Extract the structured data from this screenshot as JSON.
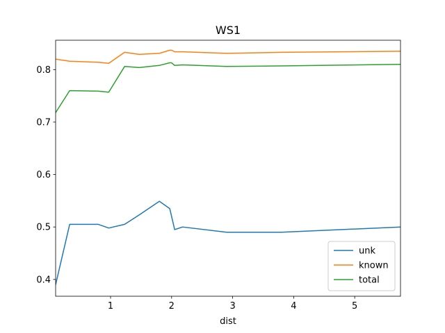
{
  "chart_data": {
    "type": "line",
    "title": "WS1",
    "xlabel": "dist",
    "ylabel": "",
    "xlim": [
      0.1,
      5.75
    ],
    "ylim": [
      0.368,
      0.856
    ],
    "xticks": [
      1,
      2,
      3,
      4,
      5
    ],
    "yticks": [
      0.4,
      0.5,
      0.6,
      0.7,
      0.8
    ],
    "grid": false,
    "legend_position": "lower-right",
    "series": [
      {
        "name": "unk",
        "color": "#1f77b4",
        "x": [
          0.1,
          0.33,
          0.8,
          0.97,
          1.23,
          1.47,
          1.8,
          1.97,
          2.05,
          2.18,
          2.9,
          3.8,
          5.75
        ],
        "y": [
          0.39,
          0.505,
          0.505,
          0.498,
          0.505,
          0.523,
          0.549,
          0.535,
          0.495,
          0.5,
          0.49,
          0.49,
          0.5
        ]
      },
      {
        "name": "known",
        "color": "#ff7f0e",
        "x": [
          0.1,
          0.33,
          0.8,
          0.97,
          1.23,
          1.47,
          1.8,
          1.97,
          2.0,
          2.05,
          2.18,
          2.9,
          3.8,
          5.75
        ],
        "y": [
          0.82,
          0.816,
          0.814,
          0.812,
          0.833,
          0.829,
          0.831,
          0.837,
          0.837,
          0.834,
          0.834,
          0.831,
          0.833,
          0.835
        ]
      },
      {
        "name": "total",
        "color": "#2ca02c",
        "x": [
          0.1,
          0.33,
          0.8,
          0.97,
          1.23,
          1.47,
          1.8,
          1.97,
          2.0,
          2.05,
          2.18,
          2.9,
          3.8,
          5.75
        ],
        "y": [
          0.718,
          0.76,
          0.759,
          0.757,
          0.806,
          0.804,
          0.808,
          0.813,
          0.813,
          0.808,
          0.809,
          0.806,
          0.807,
          0.81
        ]
      }
    ]
  }
}
